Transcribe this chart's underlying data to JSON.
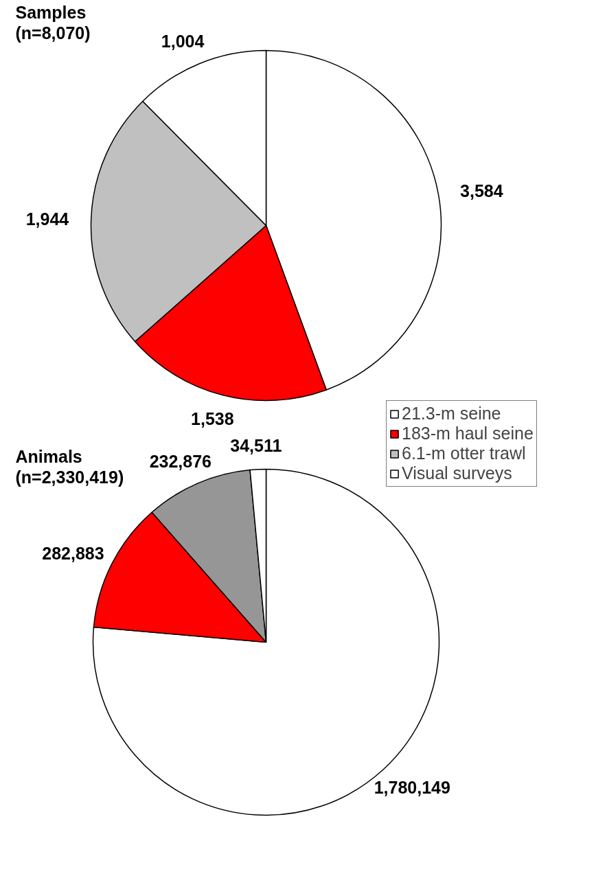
{
  "chart_data": [
    {
      "type": "pie",
      "title": "Samples\n(n=8,070)",
      "categories": [
        "21.3-m seine",
        "183-m haul seine",
        "6.1-m otter trawl",
        "Visual surveys"
      ],
      "values": [
        3584,
        1538,
        1944,
        1004
      ],
      "colors": [
        "#ffffff",
        "#ff0000",
        "#c0c0c0",
        "#ffffff"
      ],
      "value_labels": [
        "3,584",
        "1,538",
        "1,944",
        "1,004"
      ],
      "legend": "bottom right"
    },
    {
      "type": "pie",
      "title": "Animals\n(n=2,330,419)",
      "categories": [
        null,
        null,
        null,
        null
      ],
      "values": [
        1780149,
        282883,
        232876,
        34511
      ],
      "colors": [
        "#ffffff",
        "#ff0000",
        "#969696",
        "#ffffff"
      ],
      "value_labels": [
        "1,780,149",
        "282,883",
        "232,876",
        "34,511"
      ]
    }
  ]
}
